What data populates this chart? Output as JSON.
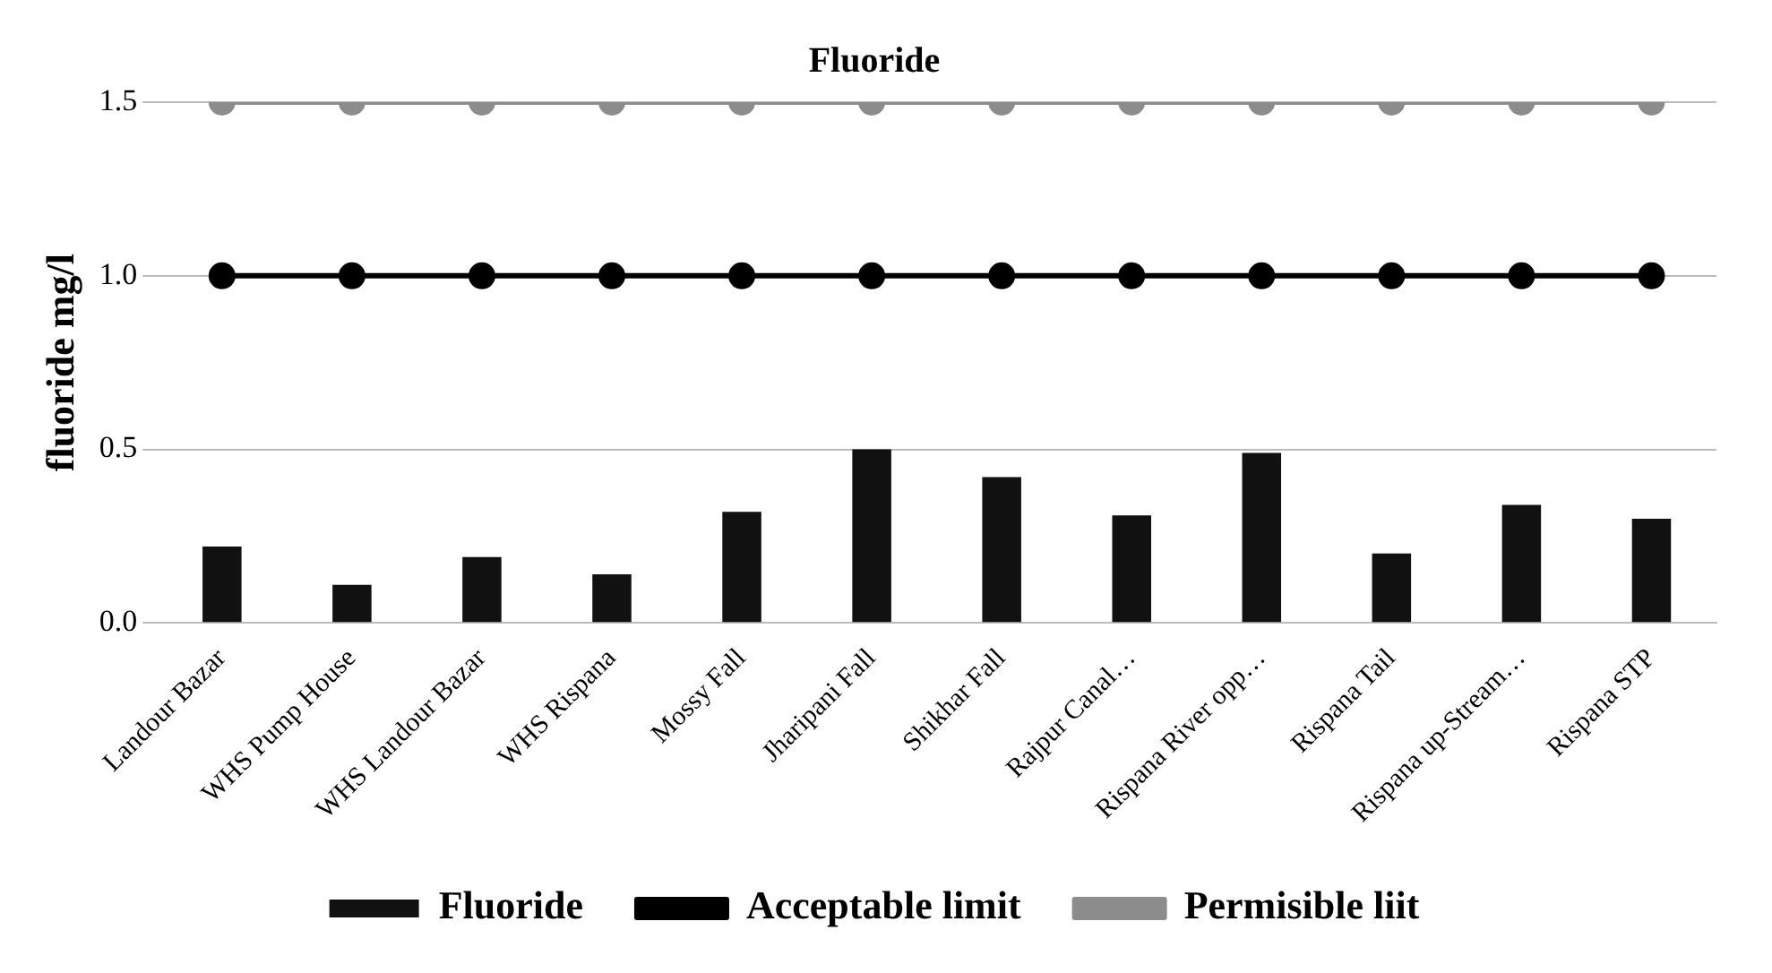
{
  "chart_data": {
    "type": "bar",
    "title": "Fluoride",
    "ylabel": "fluoride mg/l",
    "categories": [
      "Landour Bazar",
      "WHS Pump House",
      "WHS Landour Bazar",
      "WHS Rispana",
      "Mossy Fall",
      "Jharipani Fall",
      "Shikhar Fall",
      "Rajpur Canal…",
      "Rispana River opp…",
      "Rispana Tail",
      "Rispana up-Stream…",
      "Rispana STP"
    ],
    "series": [
      {
        "name": "Fluoride",
        "color": "#111111",
        "values": [
          0.22,
          0.11,
          0.19,
          0.14,
          0.32,
          0.5,
          0.42,
          0.31,
          0.49,
          0.2,
          0.34,
          0.3
        ]
      },
      {
        "name": "Acceptable limit",
        "type": "line",
        "color": "#000000",
        "values": [
          1,
          1,
          1,
          1,
          1,
          1,
          1,
          1,
          1,
          1,
          1,
          1
        ]
      },
      {
        "name": "Permisible liit",
        "type": "line",
        "color": "#8c8c8c",
        "values": [
          1.5,
          1.5,
          1.5,
          1.5,
          1.5,
          1.5,
          1.5,
          1.5,
          1.5,
          1.5,
          1.5,
          1.5
        ]
      }
    ],
    "ylim": [
      0,
      1.5
    ],
    "yticks": [
      {
        "value": 0,
        "label": "0.0"
      },
      {
        "value": 0.5,
        "label": "0.5"
      },
      {
        "value": 1,
        "label": "1.0"
      },
      {
        "value": 1.5,
        "label": "1.5"
      }
    ],
    "grid": "y",
    "legend": "bottom",
    "marker": "circle"
  }
}
